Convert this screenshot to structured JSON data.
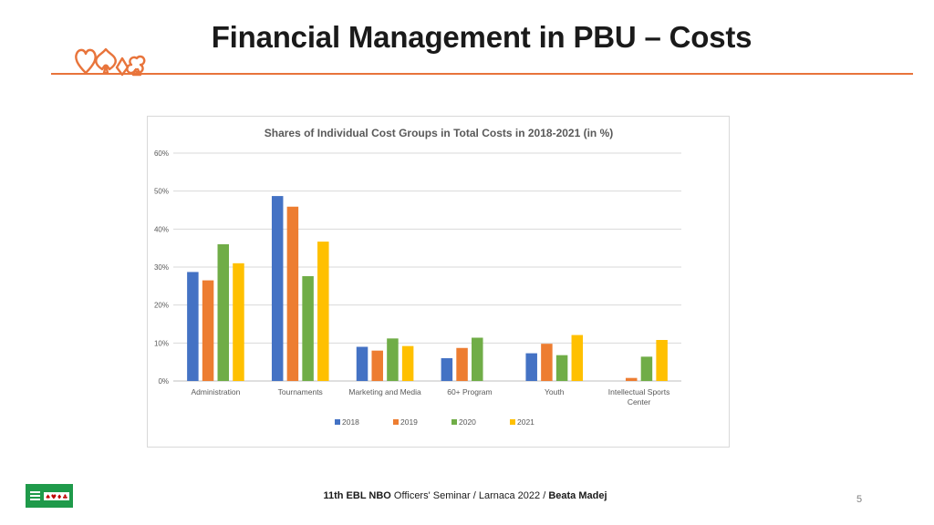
{
  "slide": {
    "title": "Financial Management in PBU – Costs",
    "page_number": "5"
  },
  "footer": {
    "part1_bold": "11th EBL NBO",
    "part2": " Officers' Seminar / Larnaca 2022 / ",
    "part3_bold": "Beata Madej"
  },
  "logo": {
    "icon": "card-suits-outline-logo",
    "color": "#e8743b"
  },
  "ebl_logo": {
    "icon": "ebl-green-logo-with-suits",
    "color": "#1f9a4a",
    "suits": "♠♥♦♣"
  },
  "chart_data": {
    "type": "bar",
    "title": "Shares of Individual Cost Groups in Total Costs in 2018-2021 (in %)",
    "categories": [
      "Administration",
      "Tournaments",
      "Marketing and Media",
      "60+ Program",
      "Youth",
      "Intellectual Sports Center"
    ],
    "category_lines": [
      [
        "Administration"
      ],
      [
        "Tournaments"
      ],
      [
        "Marketing and Media"
      ],
      [
        "60+ Program"
      ],
      [
        "Youth"
      ],
      [
        "Intellectual Sports",
        "Center"
      ]
    ],
    "series": [
      {
        "name": "2018",
        "color": "#4472c4",
        "values": [
          28.7,
          48.7,
          9.0,
          6.0,
          7.3,
          0.0
        ]
      },
      {
        "name": "2019",
        "color": "#ed7d31",
        "values": [
          26.5,
          45.9,
          8.0,
          8.7,
          9.8,
          0.8
        ]
      },
      {
        "name": "2020",
        "color": "#70ad47",
        "values": [
          36.0,
          27.6,
          11.2,
          11.4,
          6.8,
          6.4
        ]
      },
      {
        "name": "2021",
        "color": "#ffc000",
        "values": [
          31.0,
          36.7,
          9.2,
          0.0,
          12.1,
          10.8
        ]
      }
    ],
    "y_ticks": [
      "0%",
      "10%",
      "20%",
      "30%",
      "40%",
      "50%",
      "60%"
    ],
    "ylim": [
      0,
      60
    ],
    "grid": true,
    "legend_position": "bottom"
  }
}
